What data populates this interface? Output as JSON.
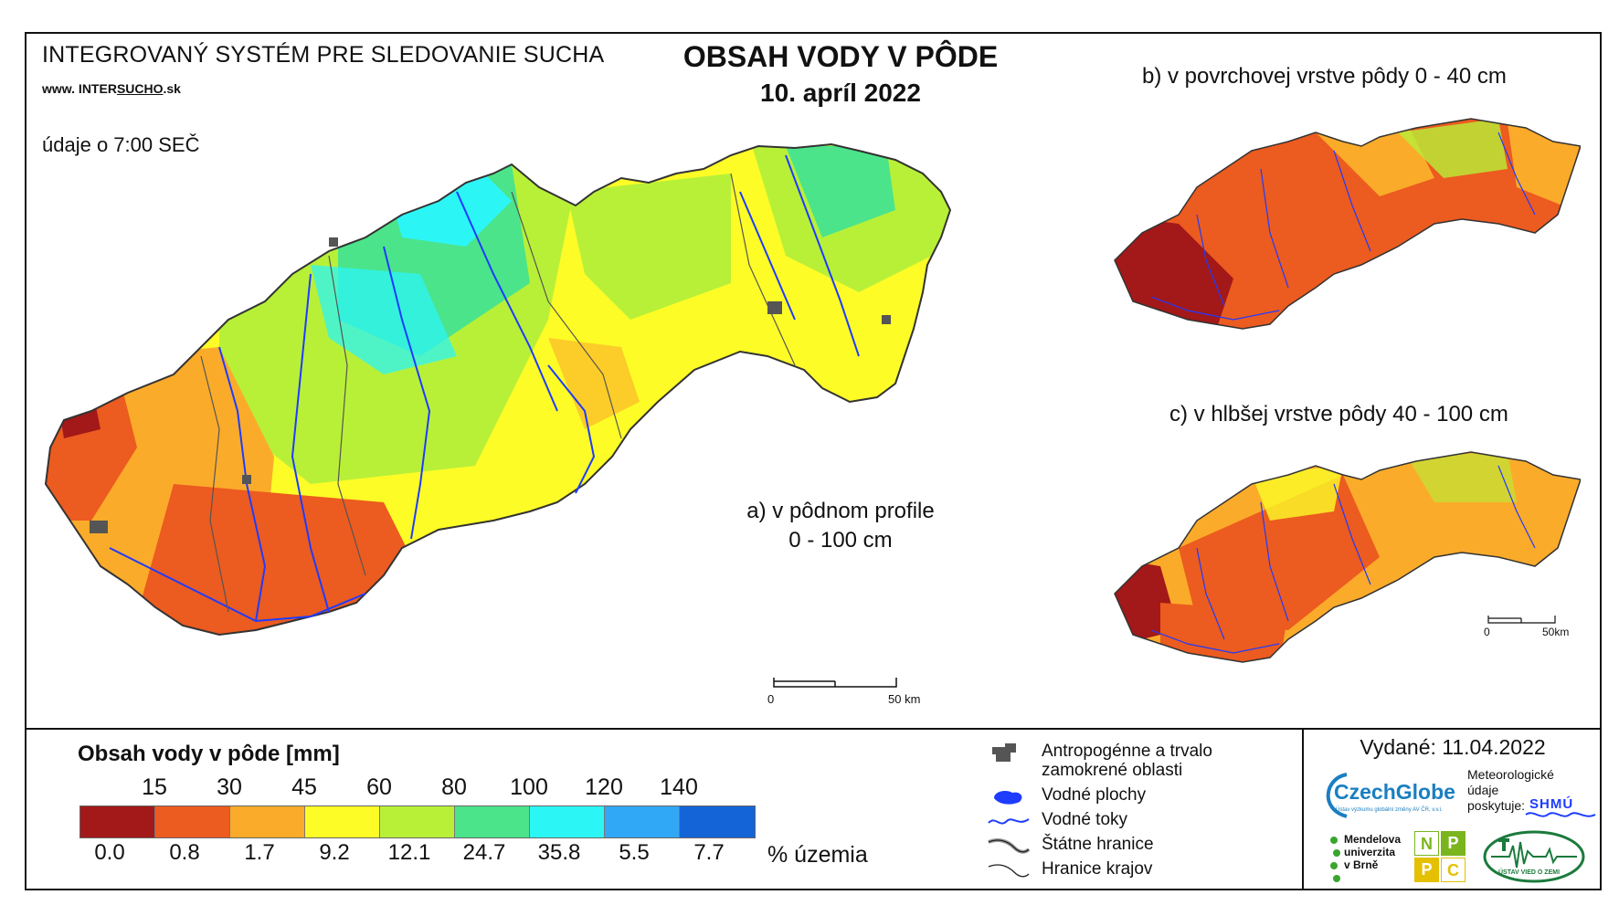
{
  "header": {
    "system_title": "INTEGROVANÝ SYSTÉM PRE SLEDOVANIE SUCHA",
    "url_prefix": "www. INTER",
    "url_mid": "SUCHO",
    "url_suffix": ".sk",
    "observation_time": "údaje o 7:00 SEČ",
    "main_title": "OBSAH VODY V PÔDE",
    "date": "10. apríl 2022"
  },
  "maps": {
    "a_label_line1": "a) v pôdnom profile",
    "a_label_line2": "0 - 100 cm",
    "b_label": "b) v povrchovej vrstve pôdy 0 - 40 cm",
    "c_label": "c) v hlbšej vrstve pôdy 40 - 100 cm",
    "scale_main_start": "0",
    "scale_main_end": "50 km",
    "scale_small_start": "0",
    "scale_small_end": "50km"
  },
  "legend": {
    "title": "Obsah vody v pôde  [mm]",
    "thresholds": [
      "15",
      "30",
      "45",
      "60",
      "80",
      "100",
      "120",
      "140"
    ],
    "colors": [
      "#a31818",
      "#ec5b1f",
      "#fbab2a",
      "#fdfc27",
      "#b8f038",
      "#4be48a",
      "#2cf5f5",
      "#31a8f5",
      "#1464d8"
    ],
    "percentages": [
      "0.0",
      "0.8",
      "1.7",
      "9.2",
      "12.1",
      "24.7",
      "35.8",
      "5.5",
      "7.7"
    ],
    "percent_unit": "% územia"
  },
  "symbols": {
    "anthropogenic_line1": "Antropogénne a trvalo",
    "anthropogenic_line2": "zamokrené oblasti",
    "water_bodies": "Vodné plochy",
    "water_streams": "Vodné toky",
    "state_borders": "Štátne hranice",
    "region_borders": "Hranice krajov"
  },
  "footer": {
    "issued": "Vydané: 11.04.2022",
    "czechglobe": "CzechGlobe",
    "czechglobe_sub": "Ústav výzkumu globální změny AV ČR, v.v.i.",
    "meteo_line1": "Meteorologické",
    "meteo_line2": "údaje",
    "meteo_line3": "poskytuje:",
    "shmu": "SHMÚ",
    "mendel_line1": "Mendelova",
    "mendel_line2": "univerzita",
    "mendel_line3": "v Brně",
    "nppc_letters": [
      "N",
      "P",
      "P",
      "C"
    ],
    "uvz": "ÚSTAV VIED O ZEMI"
  }
}
